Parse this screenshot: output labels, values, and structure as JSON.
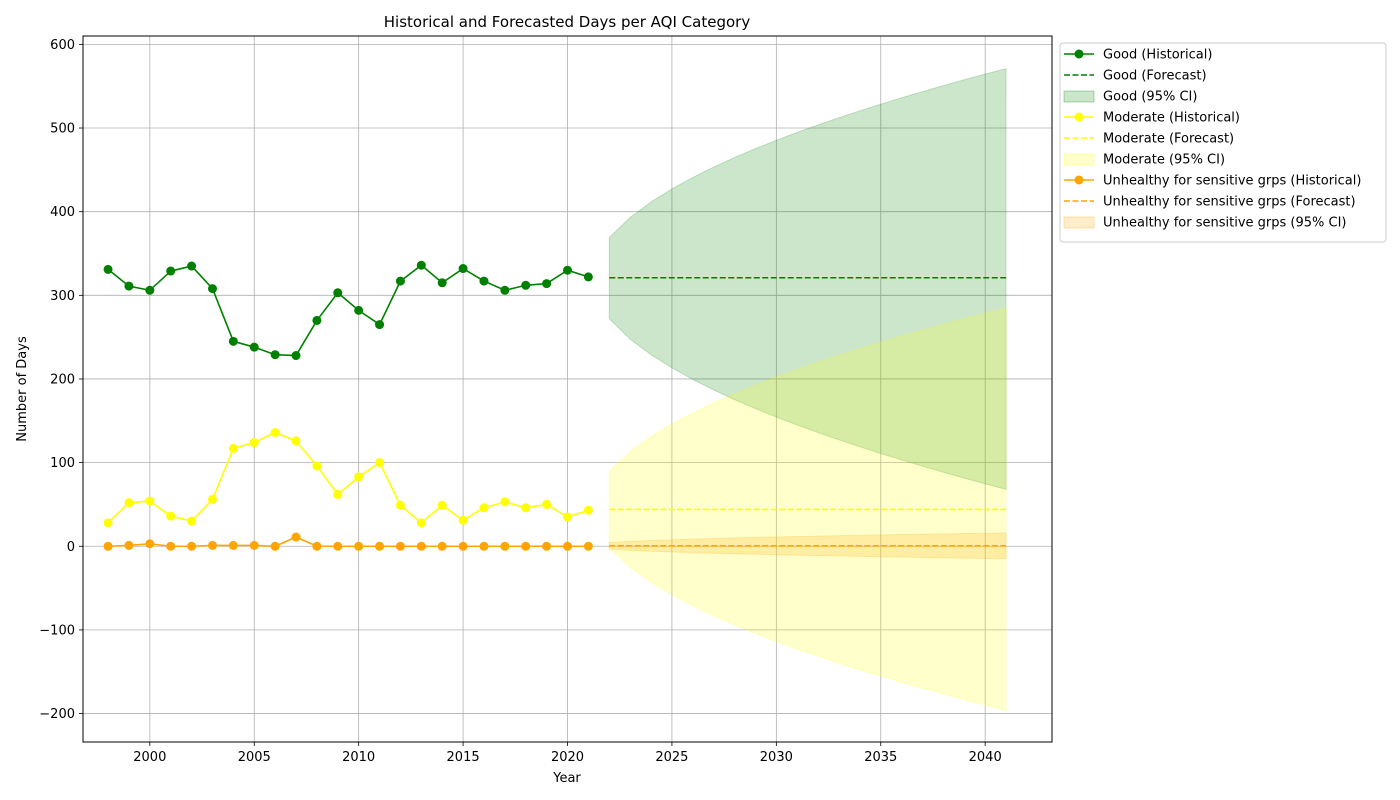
{
  "chart_data": {
    "type": "line",
    "title": "Historical and Forecasted Days per AQI Category",
    "xlabel": "Year",
    "ylabel": "Number of Days",
    "xlim": [
      1996.8,
      2043.2
    ],
    "ylim": [
      -234,
      610
    ],
    "xticks": [
      2000,
      2005,
      2010,
      2015,
      2020,
      2025,
      2030,
      2035,
      2040
    ],
    "yticks": [
      -200,
      -100,
      0,
      100,
      200,
      300,
      400,
      500,
      600
    ],
    "grid": true,
    "legend_position": "outside upper right",
    "historical_years": [
      1998,
      1999,
      2000,
      2001,
      2002,
      2003,
      2004,
      2005,
      2006,
      2007,
      2008,
      2009,
      2010,
      2011,
      2012,
      2013,
      2014,
      2015,
      2016,
      2017,
      2018,
      2019,
      2020,
      2021
    ],
    "forecast_range": [
      2022,
      2041
    ],
    "series": [
      {
        "name": "Good",
        "color": "#008000",
        "historical_label": "Good (Historical)",
        "forecast_label": "Good (Forecast)",
        "ci_label": "Good (95% CI)",
        "historical": [
          331,
          311,
          306,
          329,
          335,
          308,
          245,
          238,
          229,
          228,
          270,
          303,
          282,
          265,
          317,
          336,
          315,
          332,
          317,
          306,
          312,
          314,
          330,
          322
        ],
        "forecast": 321,
        "ci_start": [
          272,
          369
        ],
        "ci_end": [
          68,
          571
        ]
      },
      {
        "name": "Moderate",
        "color": "#ffff00",
        "historical_label": "Moderate (Historical)",
        "forecast_label": "Moderate (Forecast)",
        "ci_label": "Moderate (95% CI)",
        "historical": [
          28,
          52,
          54,
          36,
          30,
          56,
          117,
          124,
          136,
          126,
          96,
          62,
          83,
          100,
          49,
          28,
          49,
          31,
          46,
          53,
          46,
          50,
          35,
          43
        ],
        "forecast": 44,
        "ci_start": [
          -2,
          90
        ],
        "ci_end": [
          -196,
          285
        ]
      },
      {
        "name": "Unhealthy for sensitive grps",
        "color": "#ffa500",
        "historical_label": "Unhealthy for sensitive grps (Historical)",
        "forecast_label": "Unhealthy for sensitive grps (Forecast)",
        "ci_label": "Unhealthy for sensitive grps (95% CI)",
        "historical": [
          0,
          1,
          3,
          0,
          0,
          1,
          1,
          1,
          0,
          11,
          0,
          0,
          0,
          0,
          0,
          0,
          0,
          0,
          0,
          0,
          0,
          0,
          0,
          0
        ],
        "forecast": 0.5,
        "ci_start": [
          -3.5,
          4.5
        ],
        "ci_end": [
          -15,
          16
        ]
      }
    ]
  }
}
